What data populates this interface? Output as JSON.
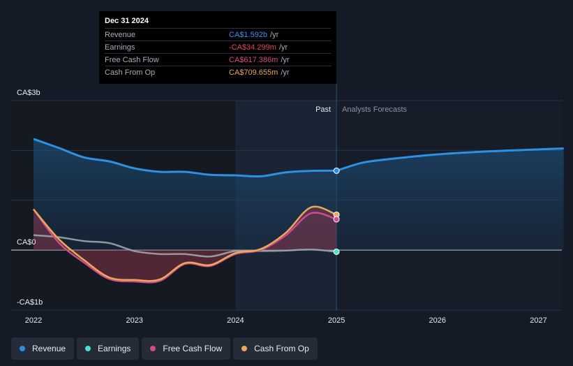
{
  "chart_data": {
    "type": "line",
    "x_axis": {
      "min": 2022.0,
      "max": 2027.25,
      "ticks": [
        "2022",
        "2023",
        "2024",
        "2025",
        "2026",
        "2027"
      ]
    },
    "y_axis": {
      "min": -1.0,
      "max": 3.0,
      "unit": "CA$b",
      "tick_labels": [
        {
          "value": 3,
          "label": "CA$3b"
        },
        {
          "value": 0,
          "label": "CA$0"
        },
        {
          "value": -1,
          "label": "-CA$1b"
        }
      ]
    },
    "past_label": "Past",
    "forecast_label": "Analysts Forecasts",
    "past_end": 2025.0,
    "series": [
      {
        "name": "Revenue",
        "color": "#2d91e3",
        "points": [
          [
            2022.0,
            2.23
          ],
          [
            2022.25,
            2.05
          ],
          [
            2022.5,
            1.86
          ],
          [
            2022.75,
            1.78
          ],
          [
            2023.0,
            1.64
          ],
          [
            2023.25,
            1.57
          ],
          [
            2023.5,
            1.57
          ],
          [
            2023.75,
            1.51
          ],
          [
            2024.0,
            1.5
          ],
          [
            2024.25,
            1.48
          ],
          [
            2024.5,
            1.56
          ],
          [
            2024.75,
            1.59
          ],
          [
            2025.0,
            1.592
          ]
        ],
        "forecast": [
          [
            2025.0,
            1.592
          ],
          [
            2025.25,
            1.75
          ],
          [
            2025.5,
            1.82
          ],
          [
            2026.0,
            1.92
          ],
          [
            2026.5,
            1.98
          ],
          [
            2027.0,
            2.02
          ],
          [
            2027.25,
            2.04
          ]
        ]
      },
      {
        "name": "Earnings",
        "color": "#4de0d1",
        "points": [
          [
            2022.0,
            0.3
          ],
          [
            2022.25,
            0.26
          ],
          [
            2022.5,
            0.18
          ],
          [
            2022.75,
            0.14
          ],
          [
            2023.0,
            -0.02
          ],
          [
            2023.25,
            -0.08
          ],
          [
            2023.5,
            -0.08
          ],
          [
            2023.75,
            -0.13
          ],
          [
            2024.0,
            -0.02
          ],
          [
            2024.25,
            -0.02
          ],
          [
            2024.5,
            -0.01
          ],
          [
            2024.75,
            0.01
          ],
          [
            2025.0,
            -0.034
          ]
        ]
      },
      {
        "name": "Free Cash Flow",
        "color": "#d14b89",
        "points": [
          [
            2022.0,
            0.82
          ],
          [
            2022.25,
            0.15
          ],
          [
            2022.5,
            -0.25
          ],
          [
            2022.75,
            -0.58
          ],
          [
            2023.0,
            -0.63
          ],
          [
            2023.25,
            -0.62
          ],
          [
            2023.5,
            -0.28
          ],
          [
            2023.75,
            -0.32
          ],
          [
            2024.0,
            -0.08
          ],
          [
            2024.25,
            0.0
          ],
          [
            2024.5,
            0.3
          ],
          [
            2024.75,
            0.74
          ],
          [
            2025.0,
            0.617
          ]
        ]
      },
      {
        "name": "Cash From Op",
        "color": "#e8a95a",
        "points": [
          [
            2022.0,
            0.82
          ],
          [
            2022.25,
            0.22
          ],
          [
            2022.5,
            -0.2
          ],
          [
            2022.75,
            -0.55
          ],
          [
            2023.0,
            -0.6
          ],
          [
            2023.25,
            -0.59
          ],
          [
            2023.5,
            -0.26
          ],
          [
            2023.75,
            -0.3
          ],
          [
            2024.0,
            -0.06
          ],
          [
            2024.25,
            0.02
          ],
          [
            2024.5,
            0.35
          ],
          [
            2024.75,
            0.86
          ],
          [
            2025.0,
            0.71
          ]
        ]
      }
    ]
  },
  "tooltip": {
    "date": "Dec 31 2024",
    "rows": [
      {
        "label": "Revenue",
        "value": "CA$1.592b",
        "unit": "/yr",
        "color": "#2d91e3"
      },
      {
        "label": "Earnings",
        "value": "-CA$34.299m",
        "unit": "/yr",
        "color": "#e0484c"
      },
      {
        "label": "Free Cash Flow",
        "value": "CA$617.386m",
        "unit": "/yr",
        "color": "#d14b89"
      },
      {
        "label": "Cash From Op",
        "value": "CA$709.655m",
        "unit": "/yr",
        "color": "#e8a95a"
      }
    ]
  },
  "legend": [
    {
      "label": "Revenue",
      "color": "#2d91e3"
    },
    {
      "label": "Earnings",
      "color": "#4de0d1"
    },
    {
      "label": "Free Cash Flow",
      "color": "#d14b89"
    },
    {
      "label": "Cash From Op",
      "color": "#e8a95a"
    }
  ]
}
